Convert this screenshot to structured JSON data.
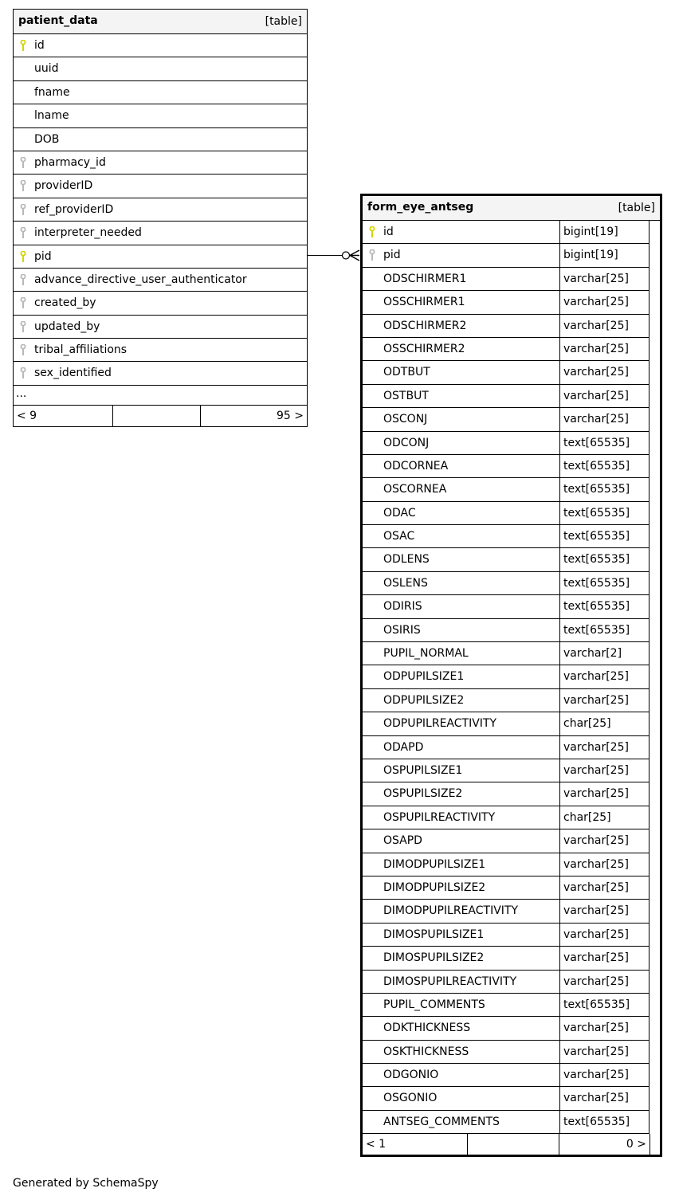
{
  "tables": [
    {
      "name": "patient_data",
      "kind": "[table]",
      "columns": [
        {
          "name": "id",
          "key": "primary"
        },
        {
          "name": "uuid",
          "key": ""
        },
        {
          "name": "fname",
          "key": ""
        },
        {
          "name": "lname",
          "key": ""
        },
        {
          "name": "DOB",
          "key": ""
        },
        {
          "name": "pharmacy_id",
          "key": "foreign"
        },
        {
          "name": "providerID",
          "key": "foreign"
        },
        {
          "name": "ref_providerID",
          "key": "foreign"
        },
        {
          "name": "interpreter_needed",
          "key": "foreign"
        },
        {
          "name": "pid",
          "key": "primary"
        },
        {
          "name": "advance_directive_user_authenticator",
          "key": "foreign"
        },
        {
          "name": "created_by",
          "key": "foreign"
        },
        {
          "name": "updated_by",
          "key": "foreign"
        },
        {
          "name": "tribal_affiliations",
          "key": "foreign"
        },
        {
          "name": "sex_identified",
          "key": "foreign"
        }
      ],
      "more": "...",
      "footer": {
        "left": "< 9",
        "middle": "",
        "right": "95 >"
      }
    },
    {
      "name": "form_eye_antseg",
      "kind": "[table]",
      "columns": [
        {
          "name": "id",
          "type": "bigint[19]",
          "key": "primary"
        },
        {
          "name": "pid",
          "type": "bigint[19]",
          "key": "foreign"
        },
        {
          "name": "ODSCHIRMER1",
          "type": "varchar[25]",
          "key": ""
        },
        {
          "name": "OSSCHIRMER1",
          "type": "varchar[25]",
          "key": ""
        },
        {
          "name": "ODSCHIRMER2",
          "type": "varchar[25]",
          "key": ""
        },
        {
          "name": "OSSCHIRMER2",
          "type": "varchar[25]",
          "key": ""
        },
        {
          "name": "ODTBUT",
          "type": "varchar[25]",
          "key": ""
        },
        {
          "name": "OSTBUT",
          "type": "varchar[25]",
          "key": ""
        },
        {
          "name": "OSCONJ",
          "type": "varchar[25]",
          "key": ""
        },
        {
          "name": "ODCONJ",
          "type": "text[65535]",
          "key": ""
        },
        {
          "name": "ODCORNEA",
          "type": "text[65535]",
          "key": ""
        },
        {
          "name": "OSCORNEA",
          "type": "text[65535]",
          "key": ""
        },
        {
          "name": "ODAC",
          "type": "text[65535]",
          "key": ""
        },
        {
          "name": "OSAC",
          "type": "text[65535]",
          "key": ""
        },
        {
          "name": "ODLENS",
          "type": "text[65535]",
          "key": ""
        },
        {
          "name": "OSLENS",
          "type": "text[65535]",
          "key": ""
        },
        {
          "name": "ODIRIS",
          "type": "text[65535]",
          "key": ""
        },
        {
          "name": "OSIRIS",
          "type": "text[65535]",
          "key": ""
        },
        {
          "name": "PUPIL_NORMAL",
          "type": "varchar[2]",
          "key": ""
        },
        {
          "name": "ODPUPILSIZE1",
          "type": "varchar[25]",
          "key": ""
        },
        {
          "name": "ODPUPILSIZE2",
          "type": "varchar[25]",
          "key": ""
        },
        {
          "name": "ODPUPILREACTIVITY",
          "type": "char[25]",
          "key": ""
        },
        {
          "name": "ODAPD",
          "type": "varchar[25]",
          "key": ""
        },
        {
          "name": "OSPUPILSIZE1",
          "type": "varchar[25]",
          "key": ""
        },
        {
          "name": "OSPUPILSIZE2",
          "type": "varchar[25]",
          "key": ""
        },
        {
          "name": "OSPUPILREACTIVITY",
          "type": "char[25]",
          "key": ""
        },
        {
          "name": "OSAPD",
          "type": "varchar[25]",
          "key": ""
        },
        {
          "name": "DIMODPUPILSIZE1",
          "type": "varchar[25]",
          "key": ""
        },
        {
          "name": "DIMODPUPILSIZE2",
          "type": "varchar[25]",
          "key": ""
        },
        {
          "name": "DIMODPUPILREACTIVITY",
          "type": "varchar[25]",
          "key": ""
        },
        {
          "name": "DIMOSPUPILSIZE1",
          "type": "varchar[25]",
          "key": ""
        },
        {
          "name": "DIMOSPUPILSIZE2",
          "type": "varchar[25]",
          "key": ""
        },
        {
          "name": "DIMOSPUPILREACTIVITY",
          "type": "varchar[25]",
          "key": ""
        },
        {
          "name": "PUPIL_COMMENTS",
          "type": "text[65535]",
          "key": ""
        },
        {
          "name": "ODKTHICKNESS",
          "type": "varchar[25]",
          "key": ""
        },
        {
          "name": "OSKTHICKNESS",
          "type": "varchar[25]",
          "key": ""
        },
        {
          "name": "ODGONIO",
          "type": "varchar[25]",
          "key": ""
        },
        {
          "name": "OSGONIO",
          "type": "varchar[25]",
          "key": ""
        },
        {
          "name": "ANTSEG_COMMENTS",
          "type": "text[65535]",
          "key": ""
        }
      ],
      "footer": {
        "left": "< 1",
        "middle": "",
        "right": "0 >"
      }
    }
  ],
  "relationship": {
    "from": "patient_data.pid",
    "to": "form_eye_antseg.pid",
    "cardinality": "one-to-zero-or-many"
  },
  "colors": {
    "primary_key": "#d4d400",
    "foreign_key": "#b8b8b8",
    "header_bg": "#f4f4f4"
  },
  "generated_by": "Generated by SchemaSpy"
}
